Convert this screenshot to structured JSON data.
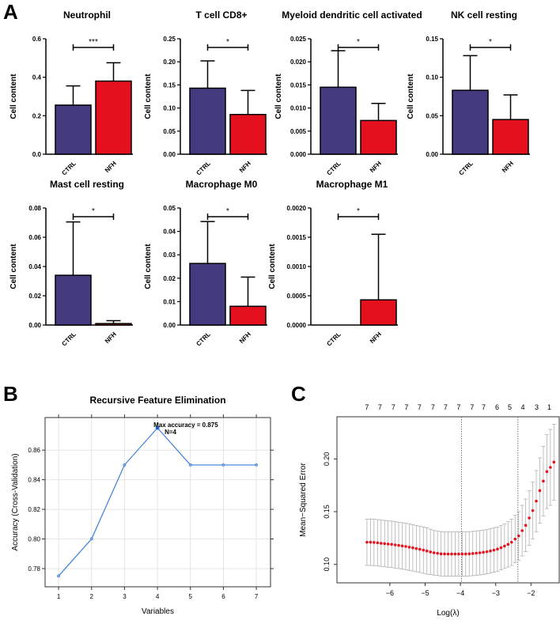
{
  "panel_labels": {
    "a": "A",
    "b": "B",
    "c": "C"
  },
  "colors": {
    "ctrl": "#433a80",
    "nfh": "#e5101e",
    "rfe_line": "#3c7fd8",
    "lasso_point": "#e8101c",
    "lasso_err": "#b0b0b0"
  },
  "chart_data": [
    {
      "type": "bar",
      "title": "Neutrophil",
      "ylabel": "Cell content",
      "categories": [
        "CTRL",
        "NFH"
      ],
      "values": [
        0.255,
        0.38
      ],
      "error_upper": [
        0.355,
        0.475
      ],
      "ylim": [
        0,
        0.6
      ],
      "yticks": [
        "0.0",
        "0.2",
        "0.4",
        "0.6"
      ],
      "significance": "***"
    },
    {
      "type": "bar",
      "title": "T cell CD8+",
      "ylabel": "Cell content",
      "categories": [
        "CTRL",
        "NFH"
      ],
      "values": [
        0.143,
        0.086
      ],
      "error_upper": [
        0.202,
        0.138
      ],
      "ylim": [
        0,
        0.25
      ],
      "yticks": [
        "0.00",
        "0.05",
        "0.10",
        "0.15",
        "0.20",
        "0.25"
      ],
      "significance": "*"
    },
    {
      "type": "bar",
      "title": "Myeloid dendritic cell activated",
      "ylabel": "Cell content",
      "categories": [
        "CTRL",
        "NFH"
      ],
      "values": [
        0.0145,
        0.0073
      ],
      "error_upper": [
        0.0224,
        0.011
      ],
      "ylim": [
        0,
        0.025
      ],
      "yticks": [
        "0.000",
        "0.005",
        "0.010",
        "0.015",
        "0.020",
        "0.025"
      ],
      "significance": "*"
    },
    {
      "type": "bar",
      "title": "NK cell resting",
      "ylabel": "Cell content",
      "categories": [
        "CTRL",
        "NFH"
      ],
      "values": [
        0.083,
        0.045
      ],
      "error_upper": [
        0.128,
        0.077
      ],
      "ylim": [
        0,
        0.15
      ],
      "yticks": [
        "0.00",
        "0.05",
        "0.10",
        "0.15"
      ],
      "significance": "*"
    },
    {
      "type": "bar",
      "title": "Mast cell resting",
      "ylabel": "Cell content",
      "categories": [
        "CTRL",
        "NFH"
      ],
      "values": [
        0.034,
        0.001
      ],
      "error_upper": [
        0.0705,
        0.003
      ],
      "ylim": [
        0,
        0.08
      ],
      "yticks": [
        "0.00",
        "0.02",
        "0.04",
        "0.06",
        "0.08"
      ],
      "significance": "*"
    },
    {
      "type": "bar",
      "title": "Macrophage M0",
      "ylabel": "Cell content",
      "categories": [
        "CTRL",
        "NFH"
      ],
      "values": [
        0.0263,
        0.008
      ],
      "error_upper": [
        0.0442,
        0.0205
      ],
      "ylim": [
        0,
        0.05
      ],
      "yticks": [
        "0.00",
        "0.01",
        "0.02",
        "0.03",
        "0.04",
        "0.05"
      ],
      "significance": "*"
    },
    {
      "type": "bar",
      "title": "Macrophage M1",
      "ylabel": "Cell content",
      "categories": [
        "CTRL",
        "NFH"
      ],
      "values": [
        0,
        0.00043
      ],
      "error_upper": [
        0,
        0.00155
      ],
      "ylim": [
        0,
        0.002
      ],
      "yticks": [
        "0.0000",
        "0.0005",
        "0.0010",
        "0.0015",
        "0.0020"
      ],
      "significance": "*"
    },
    {
      "type": "line",
      "title": "Recursive Feature Elimination",
      "xlabel": "Variables",
      "ylabel": "Accuracy (Cross-Validation)",
      "x": [
        1,
        2,
        3,
        4,
        5,
        6,
        7
      ],
      "y": [
        0.775,
        0.8,
        0.85,
        0.875,
        0.85,
        0.85,
        0.85
      ],
      "xlim": [
        0.59,
        7.43
      ],
      "ylim": [
        0.7677,
        0.882
      ],
      "xticks": [
        "1",
        "2",
        "3",
        "4",
        "5",
        "6",
        "7"
      ],
      "yticks": [
        "0.78",
        "0.80",
        "0.82",
        "0.84",
        "0.86"
      ],
      "grid": true,
      "annotation": [
        "Max accuracy = 0.875",
        "N=4"
      ]
    },
    {
      "type": "scatter",
      "xlabel": "Log(λ)",
      "ylabel": "Mean−Squared Error",
      "x": [
        -6.65,
        -6.55,
        -6.45,
        -6.35,
        -6.25,
        -6.15,
        -6.05,
        -5.95,
        -5.85,
        -5.75,
        -5.65,
        -5.55,
        -5.45,
        -5.35,
        -5.25,
        -5.15,
        -5.05,
        -4.95,
        -4.85,
        -4.75,
        -4.65,
        -4.55,
        -4.45,
        -4.35,
        -4.25,
        -4.15,
        -4.05,
        -3.95,
        -3.85,
        -3.75,
        -3.65,
        -3.55,
        -3.45,
        -3.35,
        -3.25,
        -3.15,
        -3.05,
        -2.95,
        -2.85,
        -2.75,
        -2.65,
        -2.55,
        -2.45,
        -2.35,
        -2.25,
        -2.15,
        -2.05,
        -1.95,
        -1.85,
        -1.75,
        -1.65,
        -1.55,
        -1.45,
        -1.35
      ],
      "y": [
        0.121,
        0.121,
        0.1208,
        0.1205,
        0.12,
        0.1197,
        0.1193,
        0.119,
        0.1185,
        0.118,
        0.1175,
        0.117,
        0.1163,
        0.1157,
        0.115,
        0.1143,
        0.1135,
        0.1127,
        0.1118,
        0.111,
        0.1105,
        0.11,
        0.1099,
        0.1098,
        0.1098,
        0.1098,
        0.1098,
        0.1098,
        0.1099,
        0.11,
        0.1103,
        0.1106,
        0.111,
        0.1115,
        0.112,
        0.1127,
        0.1135,
        0.1145,
        0.1158,
        0.1173,
        0.119,
        0.121,
        0.124,
        0.127,
        0.132,
        0.137,
        0.144,
        0.151,
        0.16,
        0.17,
        0.179,
        0.188,
        0.192,
        0.197
      ],
      "se": [
        0.022,
        0.022,
        0.022,
        0.022,
        0.022,
        0.022,
        0.022,
        0.022,
        0.022,
        0.022,
        0.022,
        0.022,
        0.022,
        0.022,
        0.022,
        0.022,
        0.022,
        0.022,
        0.0215,
        0.0212,
        0.021,
        0.021,
        0.021,
        0.021,
        0.021,
        0.021,
        0.021,
        0.021,
        0.021,
        0.021,
        0.021,
        0.021,
        0.021,
        0.021,
        0.021,
        0.021,
        0.021,
        0.021,
        0.021,
        0.021,
        0.0215,
        0.022,
        0.0225,
        0.023,
        0.024,
        0.025,
        0.026,
        0.027,
        0.029,
        0.031,
        0.033,
        0.035,
        0.036,
        0.036
      ],
      "xlim": [
        -7.5,
        -1.2
      ],
      "ylim": [
        0.0825,
        0.24
      ],
      "xticks": [
        "-6",
        "-5",
        "-4",
        "-3",
        "-2"
      ],
      "yticks": [
        "0.10",
        "0.15",
        "0.20"
      ],
      "vlines": [
        -3.97,
        -2.37
      ],
      "top_axis": {
        "x": [
          -6.65,
          -6.28,
          -5.9,
          -5.53,
          -5.16,
          -4.78,
          -4.42,
          -4.05,
          -3.67,
          -3.34,
          -2.96,
          -2.6,
          -2.23,
          -1.84,
          -1.48
        ],
        "labels": [
          "7",
          "7",
          "7",
          "7",
          "7",
          "7",
          "7",
          "7",
          "7",
          "7",
          "6",
          "5",
          "4",
          "3",
          "1"
        ]
      }
    }
  ]
}
